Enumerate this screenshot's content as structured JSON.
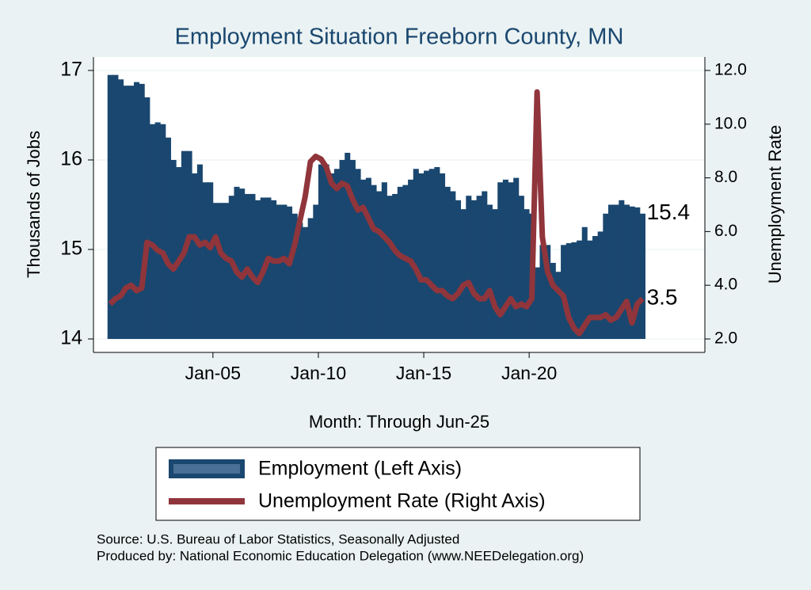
{
  "chart_data": {
    "type": "bar-line-dual",
    "title": "Employment Situation Freeborn  County, MN",
    "x_label": "Month: Through Jun-25",
    "y_label": "Thousands of Jobs",
    "y2_label": "Unemployment Rate",
    "source": "Source: U.S. Bureau of Labor Statistics, Seasonally Adjusted",
    "producer": "Produced by: National Economic Education Delegation (www.NEEDelegation.org)",
    "x": [
      "Jan-00",
      "Apr-00",
      "Jul-00",
      "Oct-00",
      "Jan-01",
      "Apr-01",
      "Jul-01",
      "Oct-01",
      "Jan-02",
      "Apr-02",
      "Jul-02",
      "Oct-02",
      "Jan-03",
      "Apr-03",
      "Jul-03",
      "Oct-03",
      "Jan-04",
      "Apr-04",
      "Jul-04",
      "Oct-04",
      "Jan-05",
      "Apr-05",
      "Jul-05",
      "Oct-05",
      "Jan-06",
      "Apr-06",
      "Jul-06",
      "Oct-06",
      "Jan-07",
      "Apr-07",
      "Jul-07",
      "Oct-07",
      "Jan-08",
      "Apr-08",
      "Jul-08",
      "Oct-08",
      "Jan-09",
      "Apr-09",
      "Jul-09",
      "Oct-09",
      "Jan-10",
      "Apr-10",
      "Jul-10",
      "Oct-10",
      "Jan-11",
      "Apr-11",
      "Jul-11",
      "Oct-11",
      "Jan-12",
      "Apr-12",
      "Jul-12",
      "Oct-12",
      "Jan-13",
      "Apr-13",
      "Jul-13",
      "Oct-13",
      "Jan-14",
      "Apr-14",
      "Jul-14",
      "Oct-14",
      "Jan-15",
      "Apr-15",
      "Jul-15",
      "Oct-15",
      "Jan-16",
      "Apr-16",
      "Jul-16",
      "Oct-16",
      "Jan-17",
      "Apr-17",
      "Jul-17",
      "Oct-17",
      "Jan-18",
      "Apr-18",
      "Jul-18",
      "Oct-18",
      "Jan-19",
      "Apr-19",
      "Jul-19",
      "Oct-19",
      "Jan-20",
      "Apr-20",
      "Jul-20",
      "Oct-20",
      "Jan-21",
      "Apr-21",
      "Jul-21",
      "Oct-21",
      "Jan-22",
      "Apr-22",
      "Jul-22",
      "Oct-22",
      "Jan-23",
      "Apr-23",
      "Jul-23",
      "Oct-23",
      "Jan-24",
      "Apr-24",
      "Jul-24",
      "Oct-24",
      "Jan-25",
      "Apr-25"
    ],
    "series": [
      {
        "name": "Employment (Left Axis)",
        "color": "#1a476f",
        "axis": "y",
        "values": [
          16.95,
          16.95,
          16.9,
          16.83,
          16.83,
          16.87,
          16.85,
          16.7,
          16.4,
          16.42,
          16.4,
          16.25,
          16.0,
          15.92,
          16.1,
          16.1,
          15.85,
          15.95,
          15.75,
          15.75,
          15.52,
          15.52,
          15.52,
          15.6,
          15.7,
          15.68,
          15.62,
          15.62,
          15.55,
          15.58,
          15.58,
          15.55,
          15.5,
          15.5,
          15.48,
          15.4,
          15.3,
          15.25,
          15.35,
          15.5,
          15.95,
          15.95,
          15.85,
          15.9,
          16.0,
          16.08,
          16.0,
          15.9,
          15.78,
          15.8,
          15.72,
          15.65,
          15.75,
          15.6,
          15.62,
          15.7,
          15.72,
          15.78,
          15.9,
          15.85,
          15.88,
          15.9,
          15.92,
          15.85,
          15.7,
          15.65,
          15.55,
          15.45,
          15.6,
          15.55,
          15.6,
          15.65,
          15.5,
          15.45,
          15.75,
          15.78,
          15.75,
          15.8,
          15.6,
          15.45,
          15.4,
          14.8,
          15.05,
          15.05,
          14.85,
          14.75,
          15.05,
          15.07,
          15.08,
          15.1,
          15.25,
          15.1,
          15.15,
          15.2,
          15.4,
          15.5,
          15.5,
          15.55,
          15.5,
          15.48,
          15.47,
          15.4
        ]
      },
      {
        "name": "Unemployment Rate (Right Axis)",
        "color": "#90353b",
        "axis": "y2",
        "values": [
          3.3,
          3.5,
          3.6,
          3.9,
          4.0,
          3.8,
          3.9,
          5.6,
          5.5,
          5.3,
          5.2,
          4.8,
          4.6,
          4.9,
          5.2,
          5.8,
          5.8,
          5.5,
          5.6,
          5.4,
          5.8,
          5.2,
          5.0,
          4.9,
          4.5,
          4.3,
          4.6,
          4.3,
          4.1,
          4.5,
          5.0,
          4.9,
          4.9,
          5.0,
          4.8,
          5.5,
          6.4,
          7.3,
          8.6,
          8.8,
          8.7,
          8.4,
          7.8,
          7.6,
          7.8,
          7.7,
          7.2,
          6.8,
          6.9,
          6.5,
          6.1,
          6.0,
          5.8,
          5.6,
          5.3,
          5.1,
          5.0,
          4.9,
          4.6,
          4.2,
          4.2,
          4.0,
          3.8,
          3.8,
          3.6,
          3.5,
          3.7,
          4.0,
          4.1,
          3.7,
          3.5,
          3.5,
          3.8,
          3.2,
          2.9,
          3.2,
          3.5,
          3.2,
          3.3,
          3.2,
          3.5,
          11.2,
          5.8,
          4.5,
          4.0,
          3.8,
          3.6,
          2.8,
          2.4,
          2.2,
          2.5,
          2.8,
          2.8,
          2.8,
          2.9,
          2.7,
          2.8,
          3.1,
          3.4,
          2.6,
          3.3,
          3.5
        ]
      }
    ],
    "xlim": [
      "May-99",
      "May-28"
    ],
    "xticks": [
      "Jan-05",
      "Jan-10",
      "Jan-15",
      "Jan-20"
    ],
    "ylim": [
      14,
      17.15
    ],
    "yticks": [
      14,
      15,
      16,
      17
    ],
    "y2lim": [
      2,
      12.5
    ],
    "y2ticks": [
      {
        "value": 2,
        "label": "2.0"
      },
      {
        "value": 4,
        "label": "4.0"
      },
      {
        "value": 6,
        "label": "6.0"
      },
      {
        "value": 8,
        "label": "8.0"
      },
      {
        "value": 10,
        "label": "10.0"
      },
      {
        "value": 12,
        "label": "12.0"
      }
    ],
    "grid": true
  }
}
